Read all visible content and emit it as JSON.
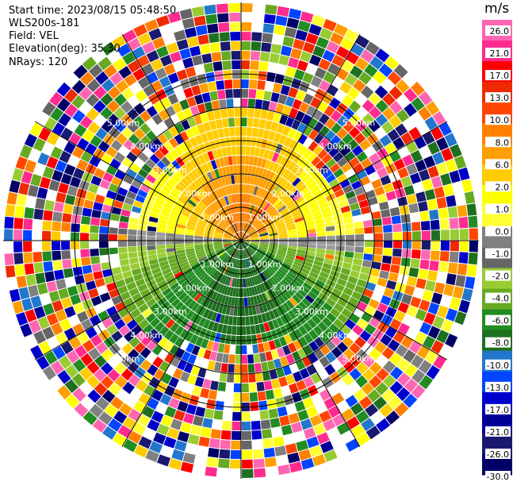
{
  "header": {
    "start_time": "Start time: 2023/08/15 05:48:50",
    "instrument": "WLS200s-181",
    "field": "Field: VEL",
    "elevation": "Elevation(deg): 35.30",
    "nrays": "NRays: 120"
  },
  "chart_data": {
    "type": "heatmap",
    "projection": "polar PPI scan",
    "field": "VEL",
    "units": "m/s",
    "n_rays": 120,
    "range_ring_labels": [
      "1.00km",
      "2.00km",
      "3.00km",
      "4.00km",
      "5.00km"
    ],
    "range_rings_km": [
      1,
      2,
      3,
      4,
      5
    ],
    "max_range_km": 7.2,
    "colorbar": {
      "title": "m/s",
      "ticks": [
        "26.0",
        "21.0",
        "17.0",
        "13.0",
        "10.0",
        "8.0",
        "6.0",
        "2.0",
        "1.0",
        "0.0",
        "-1.0",
        "-2.0",
        "-4.0",
        "-6.0",
        "-8.0",
        "-10.0",
        "-13.0",
        "-17.0",
        "-21.0",
        "-26.0",
        "-30.0"
      ],
      "colors": [
        "#ff66b2",
        "#ff2b8e",
        "#ff0000",
        "#ee2a00",
        "#ff4500",
        "#ff7f00",
        "#ff9f00",
        "#ffcc00",
        "#ffff00",
        "#ffff33",
        "#808080",
        "#666666",
        "#99cc33",
        "#66aa22",
        "#228b22",
        "#1e6f1e",
        "#2277cc",
        "#0044ff",
        "#0000cc",
        "#000099",
        "#191970",
        "#000066"
      ]
    },
    "description": "Near-range velocities: positive (yellow/orange, 1 to 10 m/s) in upper half, negative (green, -2 to -6 m/s) in lower half; outer ranges are noise"
  }
}
